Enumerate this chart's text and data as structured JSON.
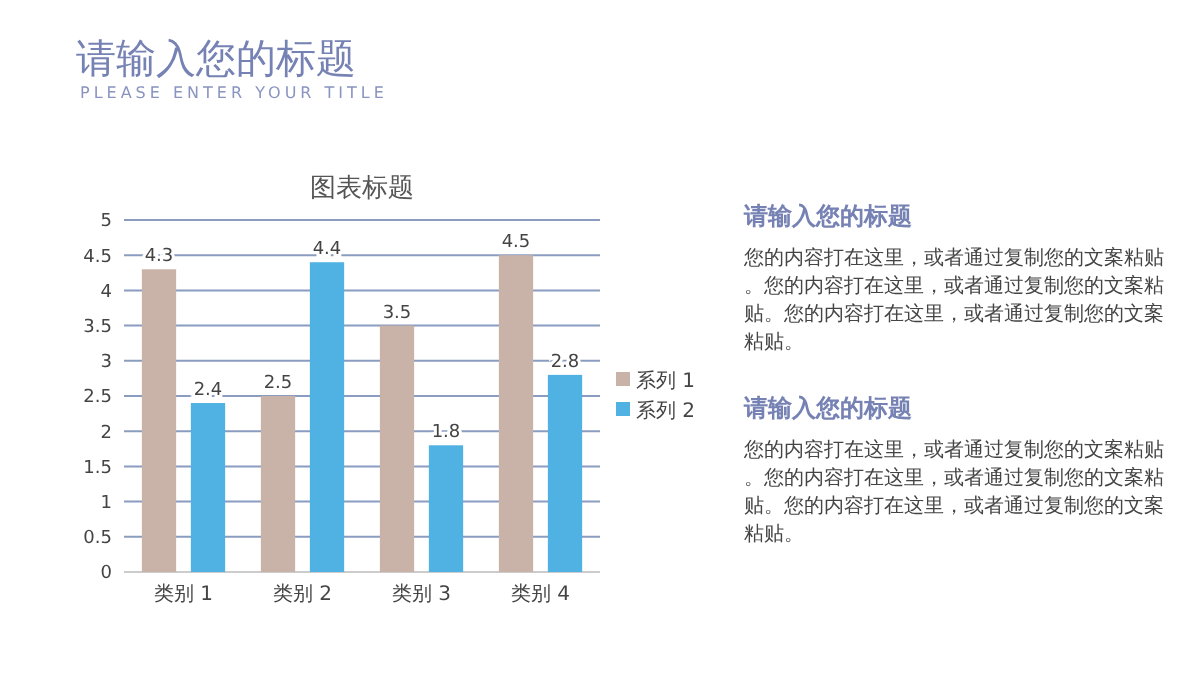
{
  "chart_data": [
    {
      "type": "other",
      "title": "请输入您的标题",
      "subtitle": "PLEASE ENTER YOUR TITLE"
    },
    {
      "type": "bar",
      "title": "图表标题",
      "categories": [
        "类别 1",
        "类别 2",
        "类别 3",
        "类别 4"
      ],
      "series": [
        {
          "name": "系列 1",
          "color": "#c9b3a8",
          "values": [
            4.3,
            2.5,
            3.5,
            4.5
          ]
        },
        {
          "name": "系列 2",
          "color": "#4fb2e3",
          "values": [
            2.4,
            4.4,
            1.8,
            2.8
          ]
        }
      ],
      "ylim": [
        0,
        5
      ],
      "yticks": [
        0,
        0.5,
        1,
        1.5,
        2,
        2.5,
        3,
        3.5,
        4,
        4.5,
        5
      ],
      "grid": "y",
      "legend": "right",
      "data_labels": true
    },
    {
      "type": "other",
      "annotations": [
        "请输入您的标题",
        "您的内容打在这里，或者通过复制您的文案粘贴。您的内容打在这里，或者通过复制您的文案粘贴。您的内容打在这里，或者通过复制您的文案粘贴。",
        "请输入您的标题",
        "您的内容打在这里，或者通过复制您的文案粘贴。您的内容打在这里，或者通过复制您的文案粘贴。您的内容打在这里，或者通过复制您的文案粘贴。"
      ]
    }
  ]
}
